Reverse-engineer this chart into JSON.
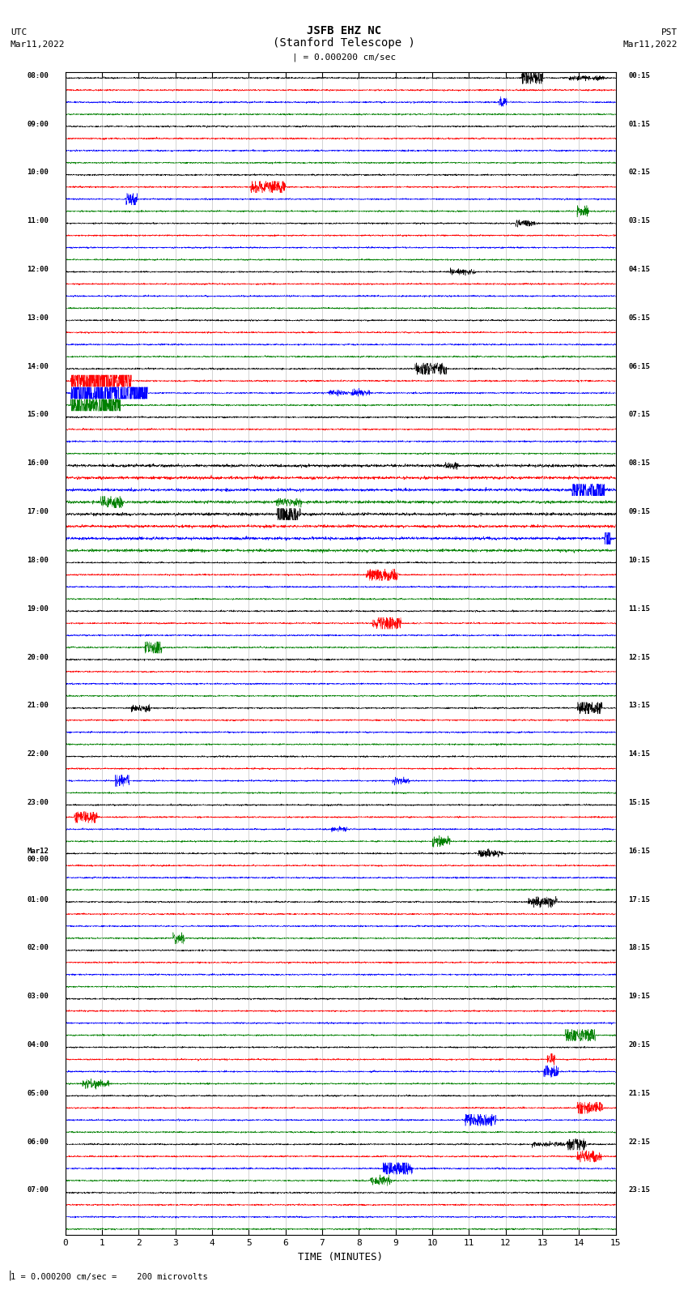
{
  "title_line1": "JSFB EHZ NC",
  "title_line2": "(Stanford Telescope )",
  "scale_label": "| = 0.000200 cm/sec",
  "left_header_line1": "UTC",
  "left_header_line2": "Mar11,2022",
  "right_header_line1": "PST",
  "right_header_line2": "Mar11,2022",
  "bottom_label": "TIME (MINUTES)",
  "bottom_note": "1 = 0.000200 cm/sec =    200 microvolts",
  "xlim": [
    0,
    15
  ],
  "xticks": [
    0,
    1,
    2,
    3,
    4,
    5,
    6,
    7,
    8,
    9,
    10,
    11,
    12,
    13,
    14,
    15
  ],
  "left_times": [
    "08:00",
    "09:00",
    "10:00",
    "11:00",
    "12:00",
    "13:00",
    "14:00",
    "15:00",
    "16:00",
    "17:00",
    "18:00",
    "19:00",
    "20:00",
    "21:00",
    "22:00",
    "23:00",
    "Mar12\n00:00",
    "01:00",
    "02:00",
    "03:00",
    "04:00",
    "05:00",
    "06:00",
    "07:00"
  ],
  "right_times": [
    "00:15",
    "01:15",
    "02:15",
    "03:15",
    "04:15",
    "05:15",
    "06:15",
    "07:15",
    "08:15",
    "09:15",
    "10:15",
    "11:15",
    "12:15",
    "13:15",
    "14:15",
    "15:15",
    "16:15",
    "17:15",
    "18:15",
    "19:15",
    "20:15",
    "21:15",
    "22:15",
    "23:15"
  ],
  "num_rows": 24,
  "traces_per_row": 4,
  "colors": [
    "black",
    "red",
    "blue",
    "green"
  ],
  "noise_amplitude": 0.03,
  "background_color": "white",
  "figsize": [
    8.5,
    16.13
  ],
  "dpi": 100,
  "seed": 42
}
